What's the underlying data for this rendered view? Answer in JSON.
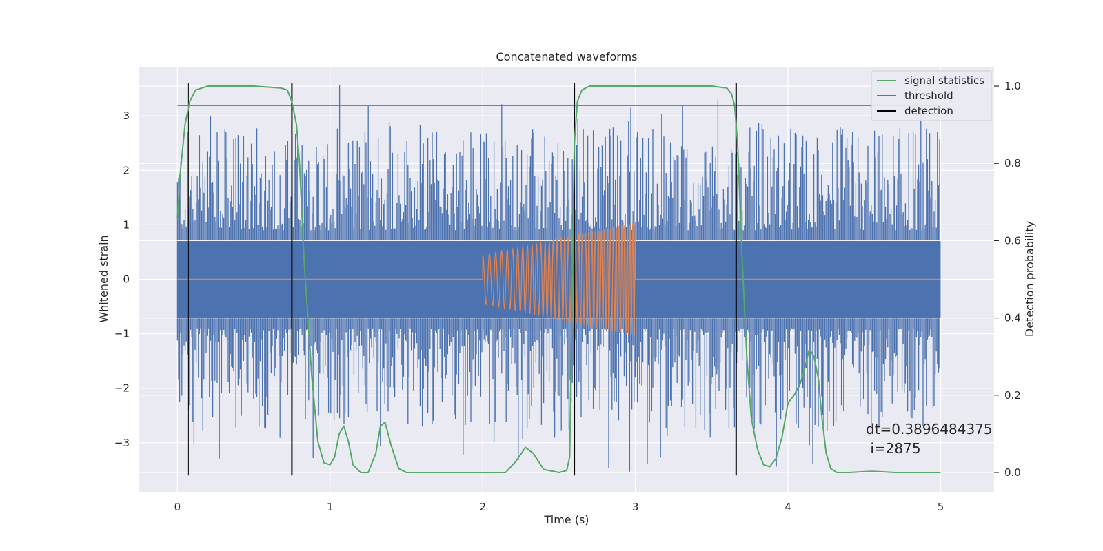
{
  "chart_data": {
    "type": "line",
    "title": "Concatenated waveforms",
    "xlabel": "Time (s)",
    "ylabel": "Whitened strain",
    "y2label": "Detection probability",
    "xlim": [
      -0.25,
      5.35
    ],
    "ylim": [
      -3.9,
      3.9
    ],
    "y2lim": [
      -0.05,
      1.05
    ],
    "xticks": [
      "0",
      "1",
      "2",
      "3",
      "4",
      "5"
    ],
    "yticks": [
      "−3",
      "−2",
      "−1",
      "0",
      "1",
      "2",
      "3"
    ],
    "y2ticks": [
      "0.0",
      "0.2",
      "0.4",
      "0.6",
      "0.8",
      "1.0"
    ],
    "grid": true,
    "legend_position": "top-right",
    "background": "#eaeaf2",
    "series": [
      {
        "name": "",
        "axis": "left",
        "color": "#4c72b0",
        "kind": "noise",
        "x_range": [
          0,
          5
        ],
        "core_band": [
          -0.7,
          0.7
        ],
        "extreme": [
          -3.6,
          3.6
        ]
      },
      {
        "name": "",
        "axis": "left",
        "color": "#dd8452",
        "kind": "chirp",
        "x": [
          0,
          2,
          2,
          3,
          3,
          5
        ],
        "envelope": [
          0,
          0,
          0.45,
          1.05,
          0,
          0
        ]
      },
      {
        "name": "signal statistics",
        "axis": "right",
        "color": "#55a868",
        "x": [
          0,
          0.02,
          0.05,
          0.08,
          0.12,
          0.2,
          0.5,
          0.68,
          0.72,
          0.75,
          0.78,
          0.8,
          0.83,
          0.88,
          0.92,
          0.96,
          1.0,
          1.03,
          1.06,
          1.09,
          1.12,
          1.15,
          1.2,
          1.25,
          1.3,
          1.33,
          1.36,
          1.4,
          1.45,
          1.5,
          1.6,
          2.0,
          2.15,
          2.22,
          2.28,
          2.33,
          2.4,
          2.5,
          2.55,
          2.57,
          2.58,
          2.6,
          2.62,
          2.65,
          2.7,
          2.8,
          3.5,
          3.6,
          3.63,
          3.65,
          3.67,
          3.7,
          3.73,
          3.76,
          3.8,
          3.84,
          3.88,
          3.92,
          3.96,
          4.0,
          4.04,
          4.08,
          4.11,
          4.14,
          4.17,
          4.2,
          4.22,
          4.25,
          4.28,
          4.32,
          4.4,
          4.5,
          4.55,
          4.6,
          4.7,
          5.0
        ],
        "y": [
          0.66,
          0.78,
          0.9,
          0.96,
          0.99,
          1.0,
          1.0,
          0.995,
          0.99,
          0.96,
          0.9,
          0.8,
          0.55,
          0.25,
          0.08,
          0.025,
          0.02,
          0.04,
          0.1,
          0.12,
          0.08,
          0.02,
          0.0,
          0.0,
          0.05,
          0.12,
          0.13,
          0.07,
          0.01,
          0.0,
          0.0,
          0.0,
          0.0,
          0.03,
          0.065,
          0.05,
          0.008,
          0.0,
          0.005,
          0.04,
          0.3,
          0.85,
          0.96,
          0.99,
          1.0,
          1.0,
          1.0,
          0.995,
          0.98,
          0.95,
          0.85,
          0.55,
          0.3,
          0.14,
          0.06,
          0.02,
          0.015,
          0.035,
          0.09,
          0.18,
          0.2,
          0.23,
          0.27,
          0.32,
          0.3,
          0.24,
          0.15,
          0.05,
          0.01,
          0.0,
          0.0,
          0.002,
          0.003,
          0.002,
          0.0,
          0.0
        ]
      },
      {
        "name": "threshold",
        "axis": "right",
        "color": "#c44e52",
        "x": [
          0,
          5
        ],
        "y": [
          0.95,
          0.95
        ]
      },
      {
        "name": "detection",
        "axis": "left",
        "color": "#000000",
        "kind": "vlines",
        "x": [
          0.07,
          0.75,
          2.6,
          3.66
        ],
        "y_range": [
          -3.6,
          3.6
        ]
      }
    ],
    "annotations": [
      "dt=0.3896484375",
      " i=2875"
    ]
  }
}
